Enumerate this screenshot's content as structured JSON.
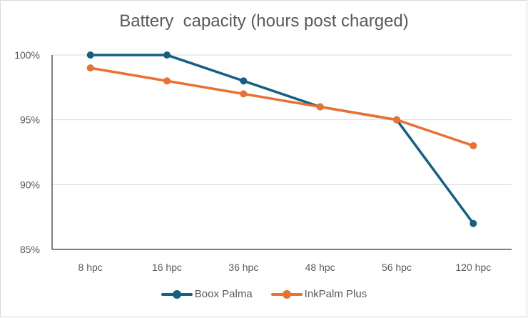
{
  "chart_data": {
    "type": "line",
    "title": "Battery  capacity (hours post charged)",
    "xlabel": "",
    "ylabel": "",
    "categories": [
      "8 hpc",
      "16 hpc",
      "36 hpc",
      "48 hpc",
      "56 hpc",
      "120 hpc"
    ],
    "series": [
      {
        "name": "Boox Palma",
        "color": "#156082",
        "values": [
          100,
          100,
          98,
          96,
          95,
          87
        ]
      },
      {
        "name": "InkPalm Plus",
        "color": "#E97132",
        "values": [
          99,
          98,
          97,
          96,
          95,
          93
        ]
      }
    ],
    "ylim": [
      85,
      100
    ],
    "yticks": [
      "100%",
      "95%",
      "90%",
      "85%"
    ],
    "grid": true,
    "legend_position": "bottom",
    "markers": true
  },
  "title": "Battery  capacity (hours post charged)",
  "legend": {
    "items": [
      {
        "label": "Boox Palma",
        "color": "#156082"
      },
      {
        "label": "InkPalm Plus",
        "color": "#E97132"
      }
    ]
  }
}
